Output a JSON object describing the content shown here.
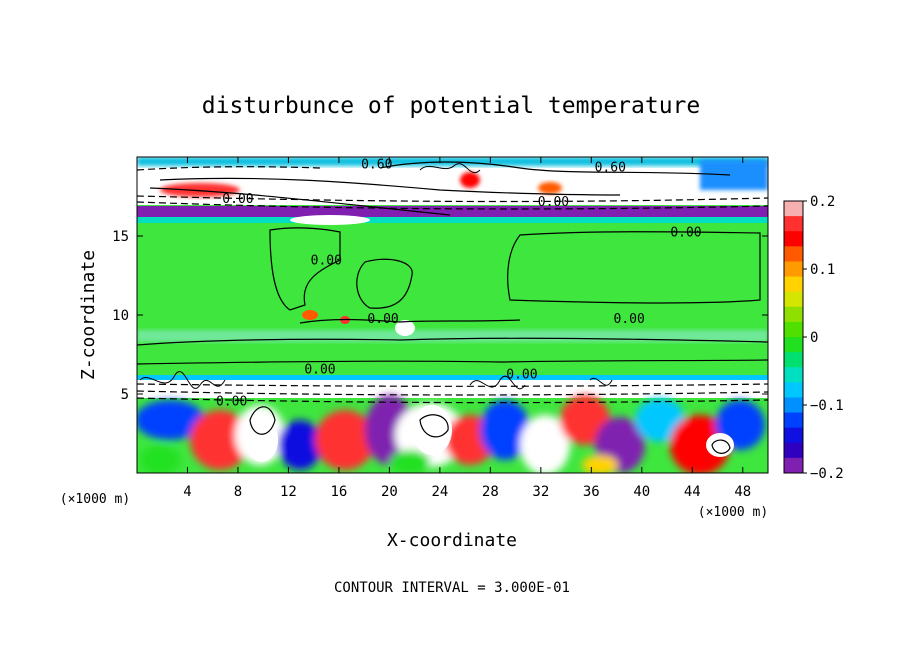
{
  "chart_data": {
    "type": "heatmap",
    "title": "disturbunce of potential temperature",
    "xlabel": "X-coordinate",
    "ylabel": "Z-coordinate",
    "x_unit": "(×1000 m)",
    "y_unit": "(×1000 m)",
    "xlim": [
      0,
      50
    ],
    "ylim": [
      0,
      20
    ],
    "x_ticks": [
      4,
      8,
      12,
      16,
      20,
      24,
      28,
      32,
      36,
      40,
      44,
      48
    ],
    "y_ticks": [
      5,
      10,
      15
    ],
    "footnote": "CONTOUR INTERVAL = 3.000E-01",
    "colorbar": {
      "min": -0.2,
      "max": 0.2,
      "ticks": [
        0.2,
        0.1,
        0,
        -0.1,
        -0.2
      ],
      "tick_labels": [
        "0.2",
        "0.1",
        "0",
        "−0.1",
        "−0.2"
      ],
      "colors": [
        "#f7b0b0",
        "#ff3030",
        "#ff0000",
        "#ff5a00",
        "#ff9a00",
        "#ffd200",
        "#d4e600",
        "#8fe000",
        "#50e000",
        "#20e020",
        "#00e070",
        "#00e0c0",
        "#00c8ff",
        "#0090ff",
        "#0040ff",
        "#1010e0",
        "#3000c0",
        "#8020b0"
      ]
    },
    "contour_labels": [
      {
        "text": "0.60",
        "x": 19.0,
        "z": 19.6
      },
      {
        "text": "0.60",
        "x": 37.5,
        "z": 19.4
      },
      {
        "text": "0.00",
        "x": 8.0,
        "z": 17.4
      },
      {
        "text": "0.00",
        "x": 33.0,
        "z": 17.2
      },
      {
        "text": "0.00",
        "x": 43.5,
        "z": 15.3
      },
      {
        "text": "0.00",
        "x": 15.0,
        "z": 13.5
      },
      {
        "text": "0.00",
        "x": 19.5,
        "z": 9.8
      },
      {
        "text": "0.00",
        "x": 39.0,
        "z": 9.8
      },
      {
        "text": "0.00",
        "x": 14.5,
        "z": 6.6
      },
      {
        "text": "0.00",
        "x": 30.5,
        "z": 6.3
      },
      {
        "text": "0.00",
        "x": 7.5,
        "z": 4.6
      }
    ]
  }
}
